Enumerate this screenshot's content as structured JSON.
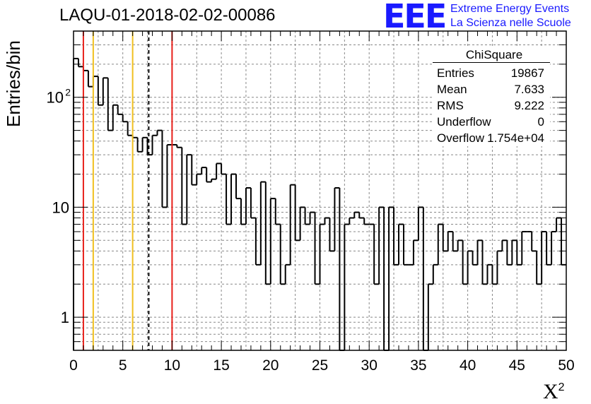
{
  "histogram": {
    "title": "LAQU-01-2018-02-02-00086",
    "logo_text": "EEE",
    "org_line1": "Extreme Energy Events",
    "org_line2": "La Scienza nelle Scuole",
    "stats": {
      "name": "ChiSquare",
      "rows": [
        {
          "label": "Entries",
          "value": "19867"
        },
        {
          "label": "Mean",
          "value": "7.633"
        },
        {
          "label": "RMS",
          "value": "9.222"
        },
        {
          "label": "Underflow",
          "value": "0"
        },
        {
          "label": "Overflow",
          "value": "1.754e+04"
        }
      ]
    }
  },
  "chart_data": {
    "type": "bar",
    "xlabel": "X",
    "xlabel_superscript": "2",
    "ylabel": "Entries/bin",
    "xlim": [
      0,
      50
    ],
    "ylim": [
      0.5,
      400
    ],
    "yscale": "log",
    "grid": true,
    "bin_width": 0.5,
    "x_ticks": [
      "0",
      "5",
      "10",
      "15",
      "20",
      "25",
      "30",
      "35",
      "40",
      "45",
      "50"
    ],
    "y_ticks": [
      {
        "value": 1,
        "label": "1"
      },
      {
        "value": 10,
        "label": "10"
      },
      {
        "value": 100,
        "label": "10",
        "exp": "2"
      }
    ],
    "values": [
      225,
      190,
      175,
      125,
      155,
      85,
      150,
      50,
      85,
      70,
      60,
      45,
      43,
      32,
      43,
      30,
      45,
      50,
      10,
      37,
      37,
      35,
      7,
      30,
      16,
      20,
      23,
      17,
      18,
      25,
      20,
      7,
      20,
      12,
      7,
      15,
      8,
      3,
      17,
      2,
      12,
      7,
      2,
      3,
      16,
      5,
      10,
      7,
      9,
      2,
      7,
      8,
      4,
      15,
      0,
      7,
      8,
      9,
      8,
      7,
      7,
      2,
      10,
      0,
      10,
      3,
      7,
      3,
      3,
      5,
      10,
      0,
      2,
      3,
      7,
      4,
      6,
      4,
      5,
      2,
      4,
      3,
      5,
      2,
      3,
      2,
      4,
      5,
      3,
      5,
      3,
      6,
      6,
      4,
      2,
      6,
      3,
      6,
      8,
      3
    ],
    "vertical_lines": [
      {
        "x": 1,
        "color": "#e8201a",
        "style": "solid"
      },
      {
        "x": 2,
        "color": "#f0c020",
        "style": "solid"
      },
      {
        "x": 6,
        "color": "#f0c020",
        "style": "solid"
      },
      {
        "x": 7.633,
        "color": "#000000",
        "style": "dashed"
      },
      {
        "x": 10,
        "color": "#e8201a",
        "style": "solid"
      }
    ]
  }
}
